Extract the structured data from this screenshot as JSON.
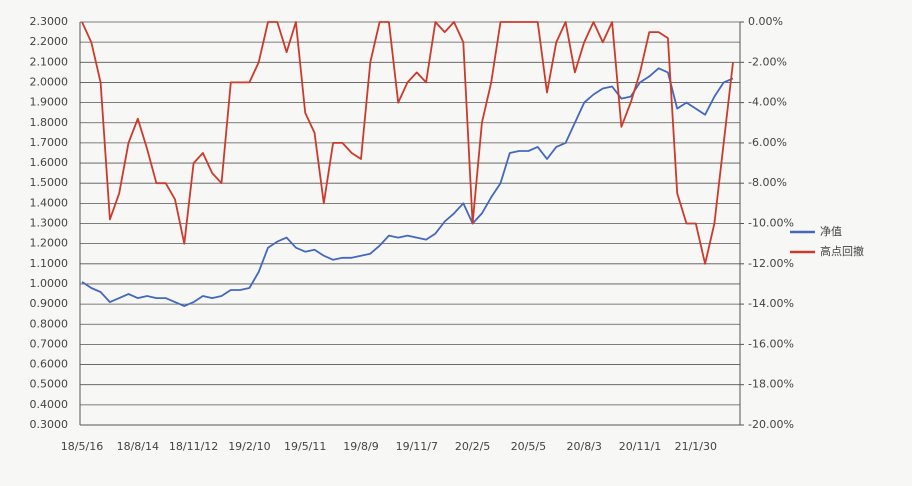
{
  "chart_data": {
    "type": "line",
    "categories": [
      "18/5/16",
      null,
      null,
      null,
      null,
      null,
      "18/8/14",
      null,
      null,
      null,
      null,
      null,
      "18/11/12",
      null,
      null,
      null,
      null,
      null,
      "19/2/10",
      null,
      null,
      null,
      null,
      null,
      "19/5/11",
      null,
      null,
      null,
      null,
      null,
      "19/8/9",
      null,
      null,
      null,
      null,
      null,
      "19/11/7",
      null,
      null,
      null,
      null,
      null,
      "20/2/5",
      null,
      null,
      null,
      null,
      null,
      "20/5/5",
      null,
      null,
      null,
      null,
      null,
      "20/8/3",
      null,
      null,
      null,
      null,
      null,
      "20/11/1",
      null,
      null,
      null,
      null,
      null,
      "21/1/30",
      null,
      null,
      null,
      null
    ],
    "series": [
      {
        "name": "净值",
        "color": "#4468c0",
        "values": [
          1.01,
          0.98,
          0.96,
          0.91,
          0.93,
          0.95,
          0.93,
          0.94,
          0.93,
          0.93,
          0.91,
          0.89,
          0.91,
          0.94,
          0.93,
          0.94,
          0.97,
          0.97,
          0.98,
          1.06,
          1.18,
          1.21,
          1.23,
          1.18,
          1.16,
          1.17,
          1.14,
          1.12,
          1.13,
          1.13,
          1.14,
          1.15,
          1.19,
          1.24,
          1.23,
          1.24,
          1.23,
          1.22,
          1.25,
          1.31,
          1.35,
          1.4,
          1.3,
          1.35,
          1.43,
          1.5,
          1.65,
          1.66,
          1.66,
          1.68,
          1.62,
          1.68,
          1.7,
          1.8,
          1.9,
          1.94,
          1.97,
          1.98,
          1.92,
          1.93,
          2.0,
          2.03,
          2.07,
          2.05,
          1.87,
          1.9,
          1.87,
          1.84,
          1.93,
          2.0,
          2.02
        ]
      },
      {
        "name": "高点回撤",
        "color": "#cc3a2c",
        "axis": "y2",
        "values": [
          0,
          -1,
          -3,
          -9.8,
          -8.5,
          -6,
          -4.8,
          -6.3,
          -8,
          -8,
          -8.8,
          -11,
          -7,
          -6.5,
          -7.5,
          -8,
          -3,
          -3,
          -3,
          -2,
          0,
          0,
          -1.5,
          0,
          -4.5,
          -5.5,
          -9,
          -6,
          -6,
          -6.5,
          -6.8,
          -2,
          0,
          0,
          -4,
          -3,
          -2.5,
          -3,
          0,
          -0.5,
          0,
          -1,
          -10,
          -5,
          -3,
          0,
          0,
          0,
          0,
          0,
          -3.5,
          -1,
          0,
          -2.5,
          -1,
          0,
          -1,
          0,
          -5.2,
          -4,
          -2.5,
          -0.5,
          -0.5,
          -0.8,
          -8.5,
          -10,
          -10,
          -12,
          -10,
          -6,
          -2
        ]
      }
    ],
    "ylim": [
      0.3,
      2.3
    ],
    "yticks": [
      {
        "value": 2.3,
        "label": "2.3000"
      },
      {
        "value": 2.2,
        "label": "2.2000"
      },
      {
        "value": 2.1,
        "label": "2.1000"
      },
      {
        "value": 2.0,
        "label": "2.0000"
      },
      {
        "value": 1.9,
        "label": "1.9000"
      },
      {
        "value": 1.8,
        "label": "1.8000"
      },
      {
        "value": 1.7,
        "label": "1.7000"
      },
      {
        "value": 1.6,
        "label": "1.6000"
      },
      {
        "value": 1.5,
        "label": "1.5000"
      },
      {
        "value": 1.4,
        "label": "1.4000"
      },
      {
        "value": 1.3,
        "label": "1.3000"
      },
      {
        "value": 1.2,
        "label": "1.2000"
      },
      {
        "value": 1.1,
        "label": "1.1000"
      },
      {
        "value": 1.0,
        "label": "1.0000"
      },
      {
        "value": 0.9,
        "label": "0.9000"
      },
      {
        "value": 0.8,
        "label": "0.8000"
      },
      {
        "value": 0.7,
        "label": "0.7000"
      },
      {
        "value": 0.6,
        "label": "0.6000"
      },
      {
        "value": 0.5,
        "label": "0.5000"
      },
      {
        "value": 0.4,
        "label": "0.4000"
      },
      {
        "value": 0.3,
        "label": "0.3000"
      }
    ],
    "y2lim": [
      -20,
      0
    ],
    "y2ticks": [
      {
        "value": 0,
        "label": "0.00%"
      },
      {
        "value": -2,
        "label": "-2.00%"
      },
      {
        "value": -4,
        "label": "-4.00%"
      },
      {
        "value": -6,
        "label": "-6.00%"
      },
      {
        "value": -8,
        "label": "-8.00%"
      },
      {
        "value": -10,
        "label": "-10.00%"
      },
      {
        "value": -12,
        "label": "-12.00%"
      },
      {
        "value": -14,
        "label": "-14.00%"
      },
      {
        "value": -16,
        "label": "-16.00%"
      },
      {
        "value": -18,
        "label": "-18.00%"
      },
      {
        "value": -20,
        "label": "-20.00%"
      }
    ],
    "grid": true,
    "legend": "right"
  }
}
